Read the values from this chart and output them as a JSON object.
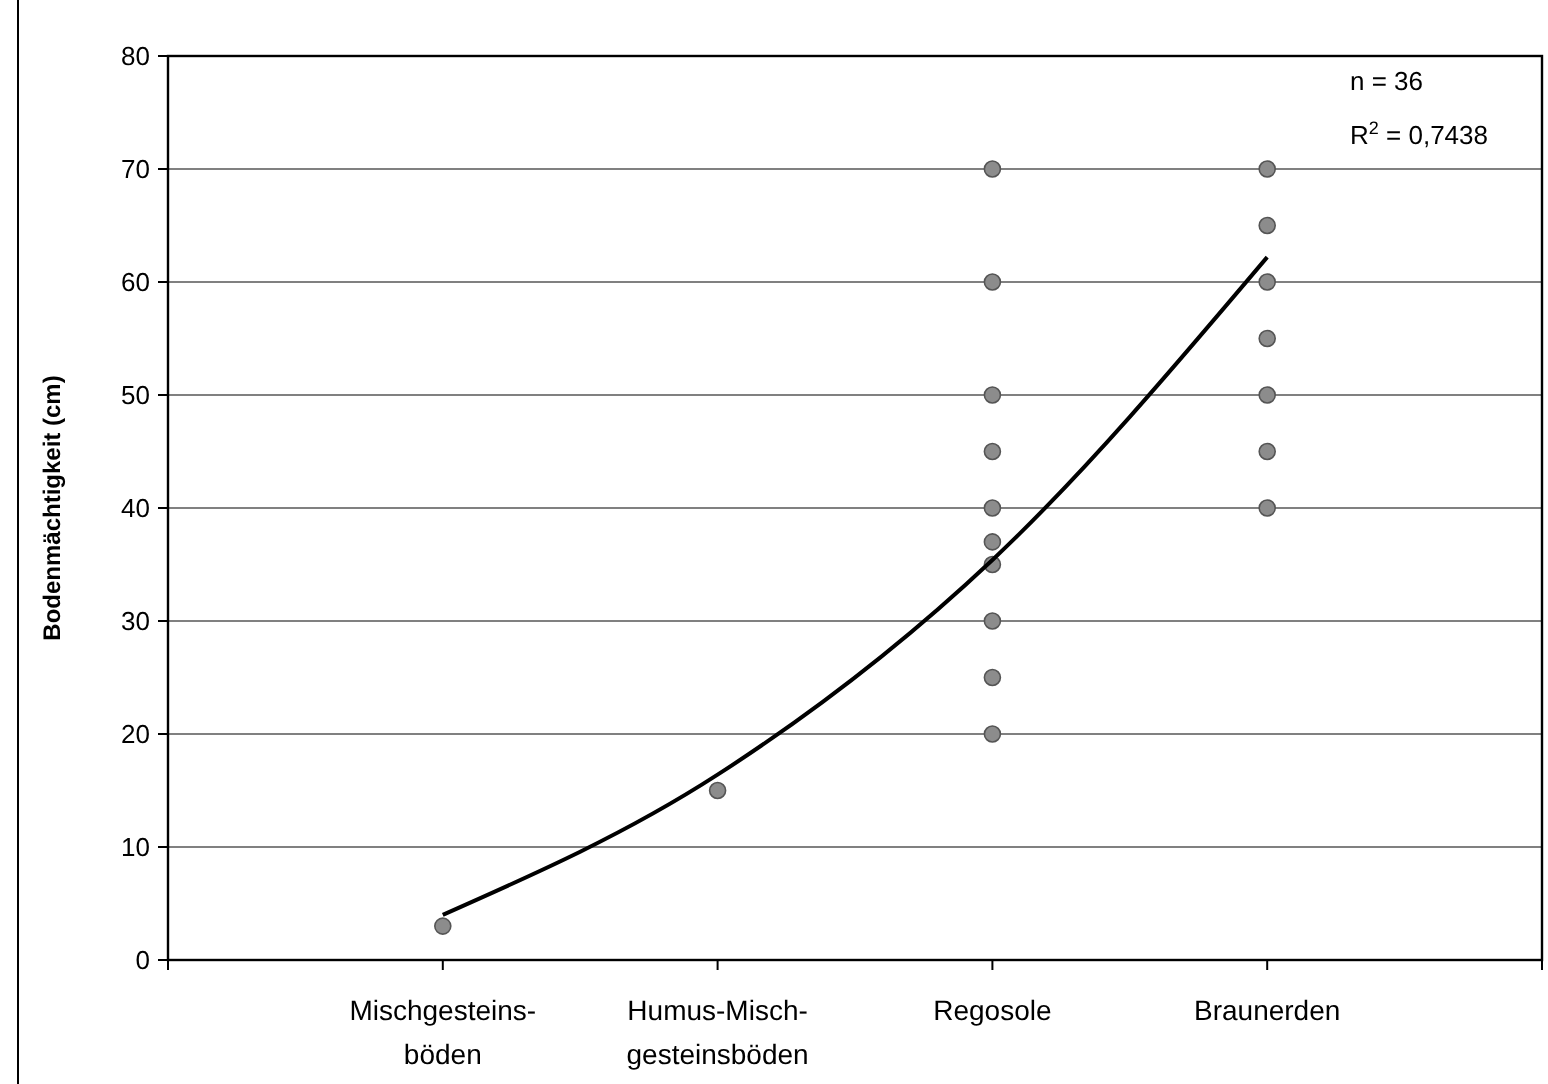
{
  "chart_data": {
    "type": "scatter",
    "ylabel": "Bodenmächtigkeit (cm)",
    "categories": [
      "Mischgesteins-\nböden",
      "Humus-Misch-\ngesteinsböden",
      "Regosole",
      "Braunerden"
    ],
    "ylim": [
      0,
      80
    ],
    "yticks": [
      0,
      10,
      20,
      30,
      40,
      50,
      60,
      70,
      80
    ],
    "grid": "y",
    "series": [
      {
        "marker": "circle",
        "color": "#8c8c8c",
        "x": [
          "Mischgesteins-\nböden",
          "Humus-Misch-\ngesteinsböden",
          "Regosole",
          "Regosole",
          "Regosole",
          "Regosole",
          "Regosole",
          "Regosole",
          "Regosole",
          "Regosole",
          "Regosole",
          "Regosole",
          "Braunerden",
          "Braunerden",
          "Braunerden",
          "Braunerden",
          "Braunerden",
          "Braunerden",
          "Braunerden"
        ],
        "values": [
          3,
          15,
          70,
          60,
          50,
          45,
          40,
          37,
          35,
          30,
          25,
          20,
          70,
          65,
          60,
          55,
          50,
          45,
          40
        ]
      },
      {
        "type": "line",
        "color": "#000000",
        "line_style": "solid",
        "values": [
          4,
          16.4,
          35.4,
          62.2
        ]
      }
    ],
    "annotations": [
      "n = 36",
      "R$^{2}$ = 0,7438"
    ]
  }
}
